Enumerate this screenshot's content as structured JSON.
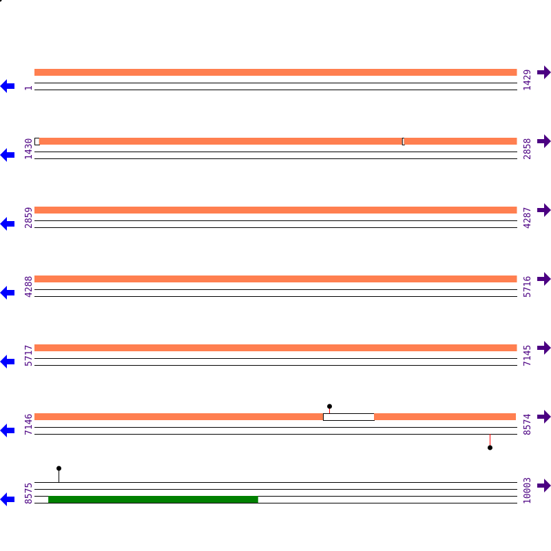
{
  "colors": {
    "feature": "#ff7f50",
    "highlight": "#008000",
    "line": "#000000",
    "label": "#4b0082",
    "left_arrow": "#0000ff",
    "right_arrow": "#4b0082",
    "stem": "#ff0000"
  },
  "icons": {
    "left": "arrow-left-icon",
    "right": "arrow-right-icon"
  },
  "rows": [
    {
      "start": "1",
      "end": "1429",
      "s": 1,
      "e": 1429,
      "features": [
        {
          "from": 1,
          "to": 1429,
          "type": "fill"
        }
      ],
      "lollipops": [],
      "green": []
    },
    {
      "start": "1430",
      "end": "2858",
      "s": 1430,
      "e": 2858,
      "features": [
        {
          "from": 1430,
          "to": 1444,
          "type": "gap"
        },
        {
          "from": 1444,
          "to": 2518,
          "type": "fill"
        },
        {
          "from": 2518,
          "to": 2524,
          "type": "gap"
        },
        {
          "from": 2524,
          "to": 2858,
          "type": "fill"
        }
      ],
      "lollipops": [],
      "green": []
    },
    {
      "start": "2859",
      "end": "4287",
      "s": 2859,
      "e": 4287,
      "features": [
        {
          "from": 2859,
          "to": 4287,
          "type": "fill"
        }
      ],
      "lollipops": [],
      "green": []
    },
    {
      "start": "4288",
      "end": "5716",
      "s": 4288,
      "e": 5716,
      "features": [
        {
          "from": 4288,
          "to": 5716,
          "type": "fill"
        }
      ],
      "lollipops": [],
      "green": []
    },
    {
      "start": "5717",
      "end": "7145",
      "s": 5717,
      "e": 7145,
      "features": [
        {
          "from": 5717,
          "to": 7145,
          "type": "fill"
        }
      ],
      "lollipops": [],
      "green": []
    },
    {
      "start": "7146",
      "end": "8574",
      "s": 7146,
      "e": 8574,
      "features": [
        {
          "from": 7146,
          "to": 8000,
          "type": "fill"
        },
        {
          "from": 8000,
          "to": 8151,
          "type": "gap"
        },
        {
          "from": 8151,
          "to": 8571,
          "type": "fill"
        }
      ],
      "lollipops": [
        {
          "pos": 8018,
          "dir": "up"
        },
        {
          "pos": 8493,
          "dir": "down"
        }
      ],
      "green": []
    },
    {
      "start": "8575",
      "end": "10003",
      "s": 8575,
      "e": 10003,
      "features": [],
      "lollipops": [
        {
          "pos": 8646,
          "dir": "up7"
        }
      ],
      "green": [
        {
          "from": 8616,
          "to": 9237
        }
      ]
    }
  ]
}
